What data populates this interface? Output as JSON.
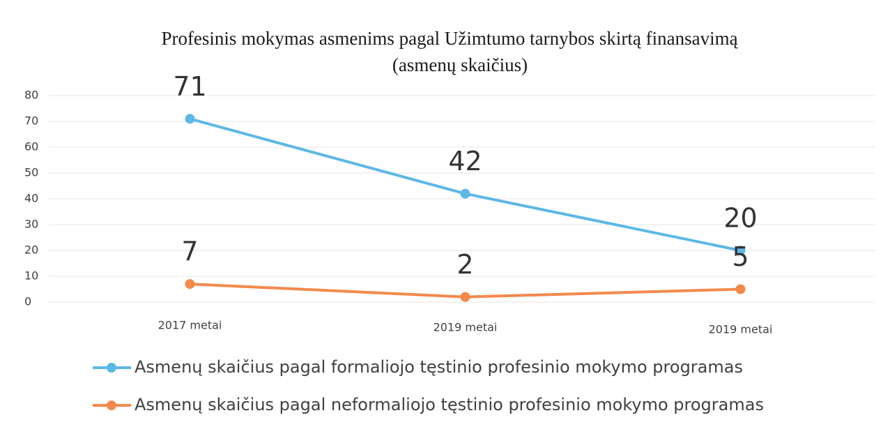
{
  "chart_data": {
    "type": "line",
    "title": "Profesinis mokymas  asmenims pagal Užimtumo tarnybos  skirtą finansavimą",
    "subtitle": "(asmenų skaičius)",
    "categories": [
      "2017 metai",
      "2019 metai",
      "2019 metai"
    ],
    "series": [
      {
        "name": "Asmenų skaičius pagal formaliojo tęstinio profesinio mokymo programas",
        "color": "#5cb8e6",
        "values": [
          71,
          42,
          20
        ]
      },
      {
        "name": "Asmenų skaičius pagal neformaliojo tęstinio profesinio mokymo programas",
        "color": "#f28a4c",
        "values": [
          7,
          2,
          5
        ]
      }
    ],
    "ylim": [
      0,
      80
    ],
    "yticks": [
      0,
      10,
      20,
      30,
      40,
      50,
      60,
      70,
      80
    ],
    "grid": true,
    "legend": "bottom"
  }
}
